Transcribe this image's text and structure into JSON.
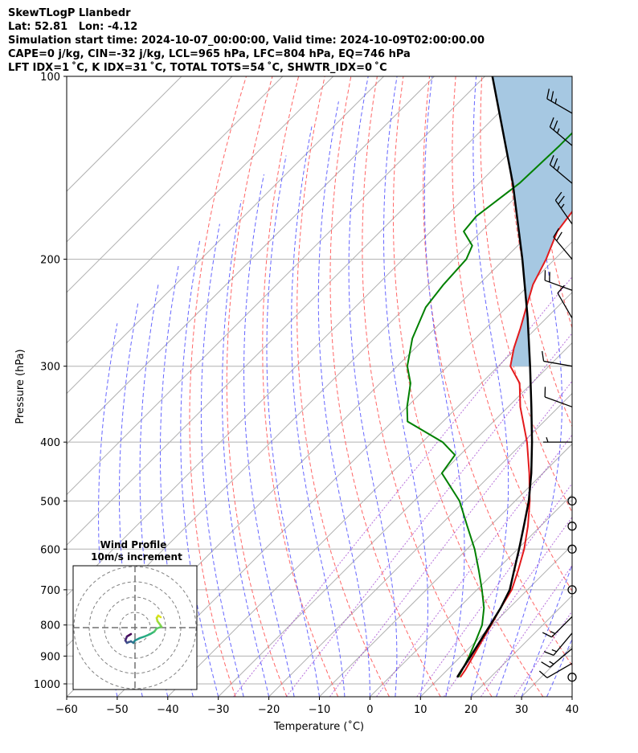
{
  "header": {
    "line1": "SkewTLogP Llanbedr",
    "line2": "Lat: 52.81   Lon: -4.12",
    "line3": "Simulation start time: 2024-10-07_00:00:00, Valid time: 2024-10-09T02:00:00.00",
    "line4": "CAPE=0 j/kg, CIN=-32 j/kg, LCL=965 hPa, LFC=804 hPa, EQ=746 hPa",
    "line5": "LFT IDX=1 ˚C, K IDX=31 ˚C, TOTAL TOTS=54 ˚C, SHWTR_IDX=0 ˚C"
  },
  "hodograph": {
    "title": "Wind Profile",
    "subtitle": "10m/s increment"
  },
  "chart_data": {
    "type": "line",
    "subtype": "skew-T log-P",
    "xlabel": "Temperature (˚C)",
    "ylabel": "Pressure (hPa)",
    "xlim": [
      -60,
      40
    ],
    "ylim": [
      1050,
      100
    ],
    "y_scale": "log",
    "x_ticks": [
      "−60",
      "−50",
      "−40",
      "−30",
      "−20",
      "−10",
      "0",
      "10",
      "20",
      "30",
      "40"
    ],
    "y_ticks": [
      "100",
      "200",
      "300",
      "400",
      "500",
      "600",
      "700",
      "800",
      "900",
      "1000"
    ],
    "grid": true,
    "series": [
      {
        "color": "#e31a1c",
        "pressure": [
          975,
          950,
          900,
          850,
          800,
          750,
          700,
          650,
          600,
          550,
          500,
          450,
          400,
          350,
          320,
          300,
          280,
          260,
          240,
          220,
          200,
          180,
          160,
          150,
          140,
          130,
          120,
          110,
          100
        ],
        "temperature": [
          14,
          13.6,
          12.4,
          11.1,
          9.8,
          8.3,
          6.9,
          4.3,
          1.3,
          -2.5,
          -7.1,
          -12.7,
          -19.3,
          -27.6,
          -32.4,
          -37.6,
          -40.5,
          -43.1,
          -46.1,
          -49.3,
          -51.7,
          -55.0,
          -56.5,
          -57.5,
          -58.9,
          -61.7,
          -63.5,
          -64.8,
          -65.9
        ]
      },
      {
        "color": "#008000",
        "pressure": [
          975,
          950,
          900,
          850,
          800,
          750,
          700,
          650,
          600,
          550,
          500,
          450,
          420,
          400,
          370,
          350,
          320,
          300,
          270,
          240,
          220,
          200,
          190,
          180,
          170,
          150,
          130,
          110,
          100
        ],
        "temperature": [
          13.6,
          13.0,
          11.6,
          9.9,
          8.0,
          5.0,
          1.0,
          -3.5,
          -8.5,
          -14.5,
          -21.0,
          -30.0,
          -31.0,
          -36.0,
          -47.0,
          -50.0,
          -54.0,
          -58.0,
          -62.5,
          -66.0,
          -67.0,
          -67.5,
          -69.0,
          -73.5,
          -74.0,
          -72.0,
          -71.5,
          -71.5,
          -71.0
        ]
      },
      {
        "color": "#000000",
        "pressure": [
          975,
          950,
          900,
          850,
          800,
          750,
          700,
          650,
          600,
          550,
          500,
          450,
          400,
          350,
          300,
          250,
          200,
          150,
          100
        ],
        "temperature": [
          13.4,
          12.9,
          11.9,
          10.8,
          9.6,
          8.3,
          6.5,
          3.5,
          0.3,
          -3.3,
          -7.3,
          -12.3,
          -18.3,
          -25.4,
          -33.7,
          -43.7,
          -56.4,
          -73.3,
          -98.5
        ]
      }
    ],
    "cape_cin_fill": {
      "color": "#a6c8e2",
      "between": "parcel and temperature profile",
      "pressure_range": [
        300,
        100
      ]
    },
    "wind_barbs": [
      {
        "pressure": 975,
        "calm": true
      },
      {
        "pressure": 925,
        "speed_kt": 10,
        "direction_deg": 240
      },
      {
        "pressure": 875,
        "speed_kt": 15,
        "direction_deg": 230
      },
      {
        "pressure": 825,
        "speed_kt": 15,
        "direction_deg": 220
      },
      {
        "pressure": 775,
        "speed_kt": 15,
        "direction_deg": 225
      },
      {
        "pressure": 700,
        "calm": true
      },
      {
        "pressure": 600,
        "calm": true
      },
      {
        "pressure": 550,
        "calm": true
      },
      {
        "pressure": 500,
        "calm": true
      },
      {
        "pressure": 400,
        "speed_kt": 5,
        "direction_deg": 270
      },
      {
        "pressure": 350,
        "speed_kt": 10,
        "direction_deg": 290
      },
      {
        "pressure": 300,
        "speed_kt": 10,
        "direction_deg": 280
      },
      {
        "pressure": 250,
        "speed_kt": 10,
        "direction_deg": 330
      },
      {
        "pressure": 225,
        "speed_kt": 20,
        "direction_deg": 290
      },
      {
        "pressure": 200,
        "speed_kt": 20,
        "direction_deg": 320
      },
      {
        "pressure": 175,
        "speed_kt": 25,
        "direction_deg": 325
      },
      {
        "pressure": 150,
        "speed_kt": 25,
        "direction_deg": 310
      },
      {
        "pressure": 130,
        "speed_kt": 25,
        "direction_deg": 310
      },
      {
        "pressure": 115,
        "speed_kt": 25,
        "direction_deg": 300
      }
    ]
  }
}
